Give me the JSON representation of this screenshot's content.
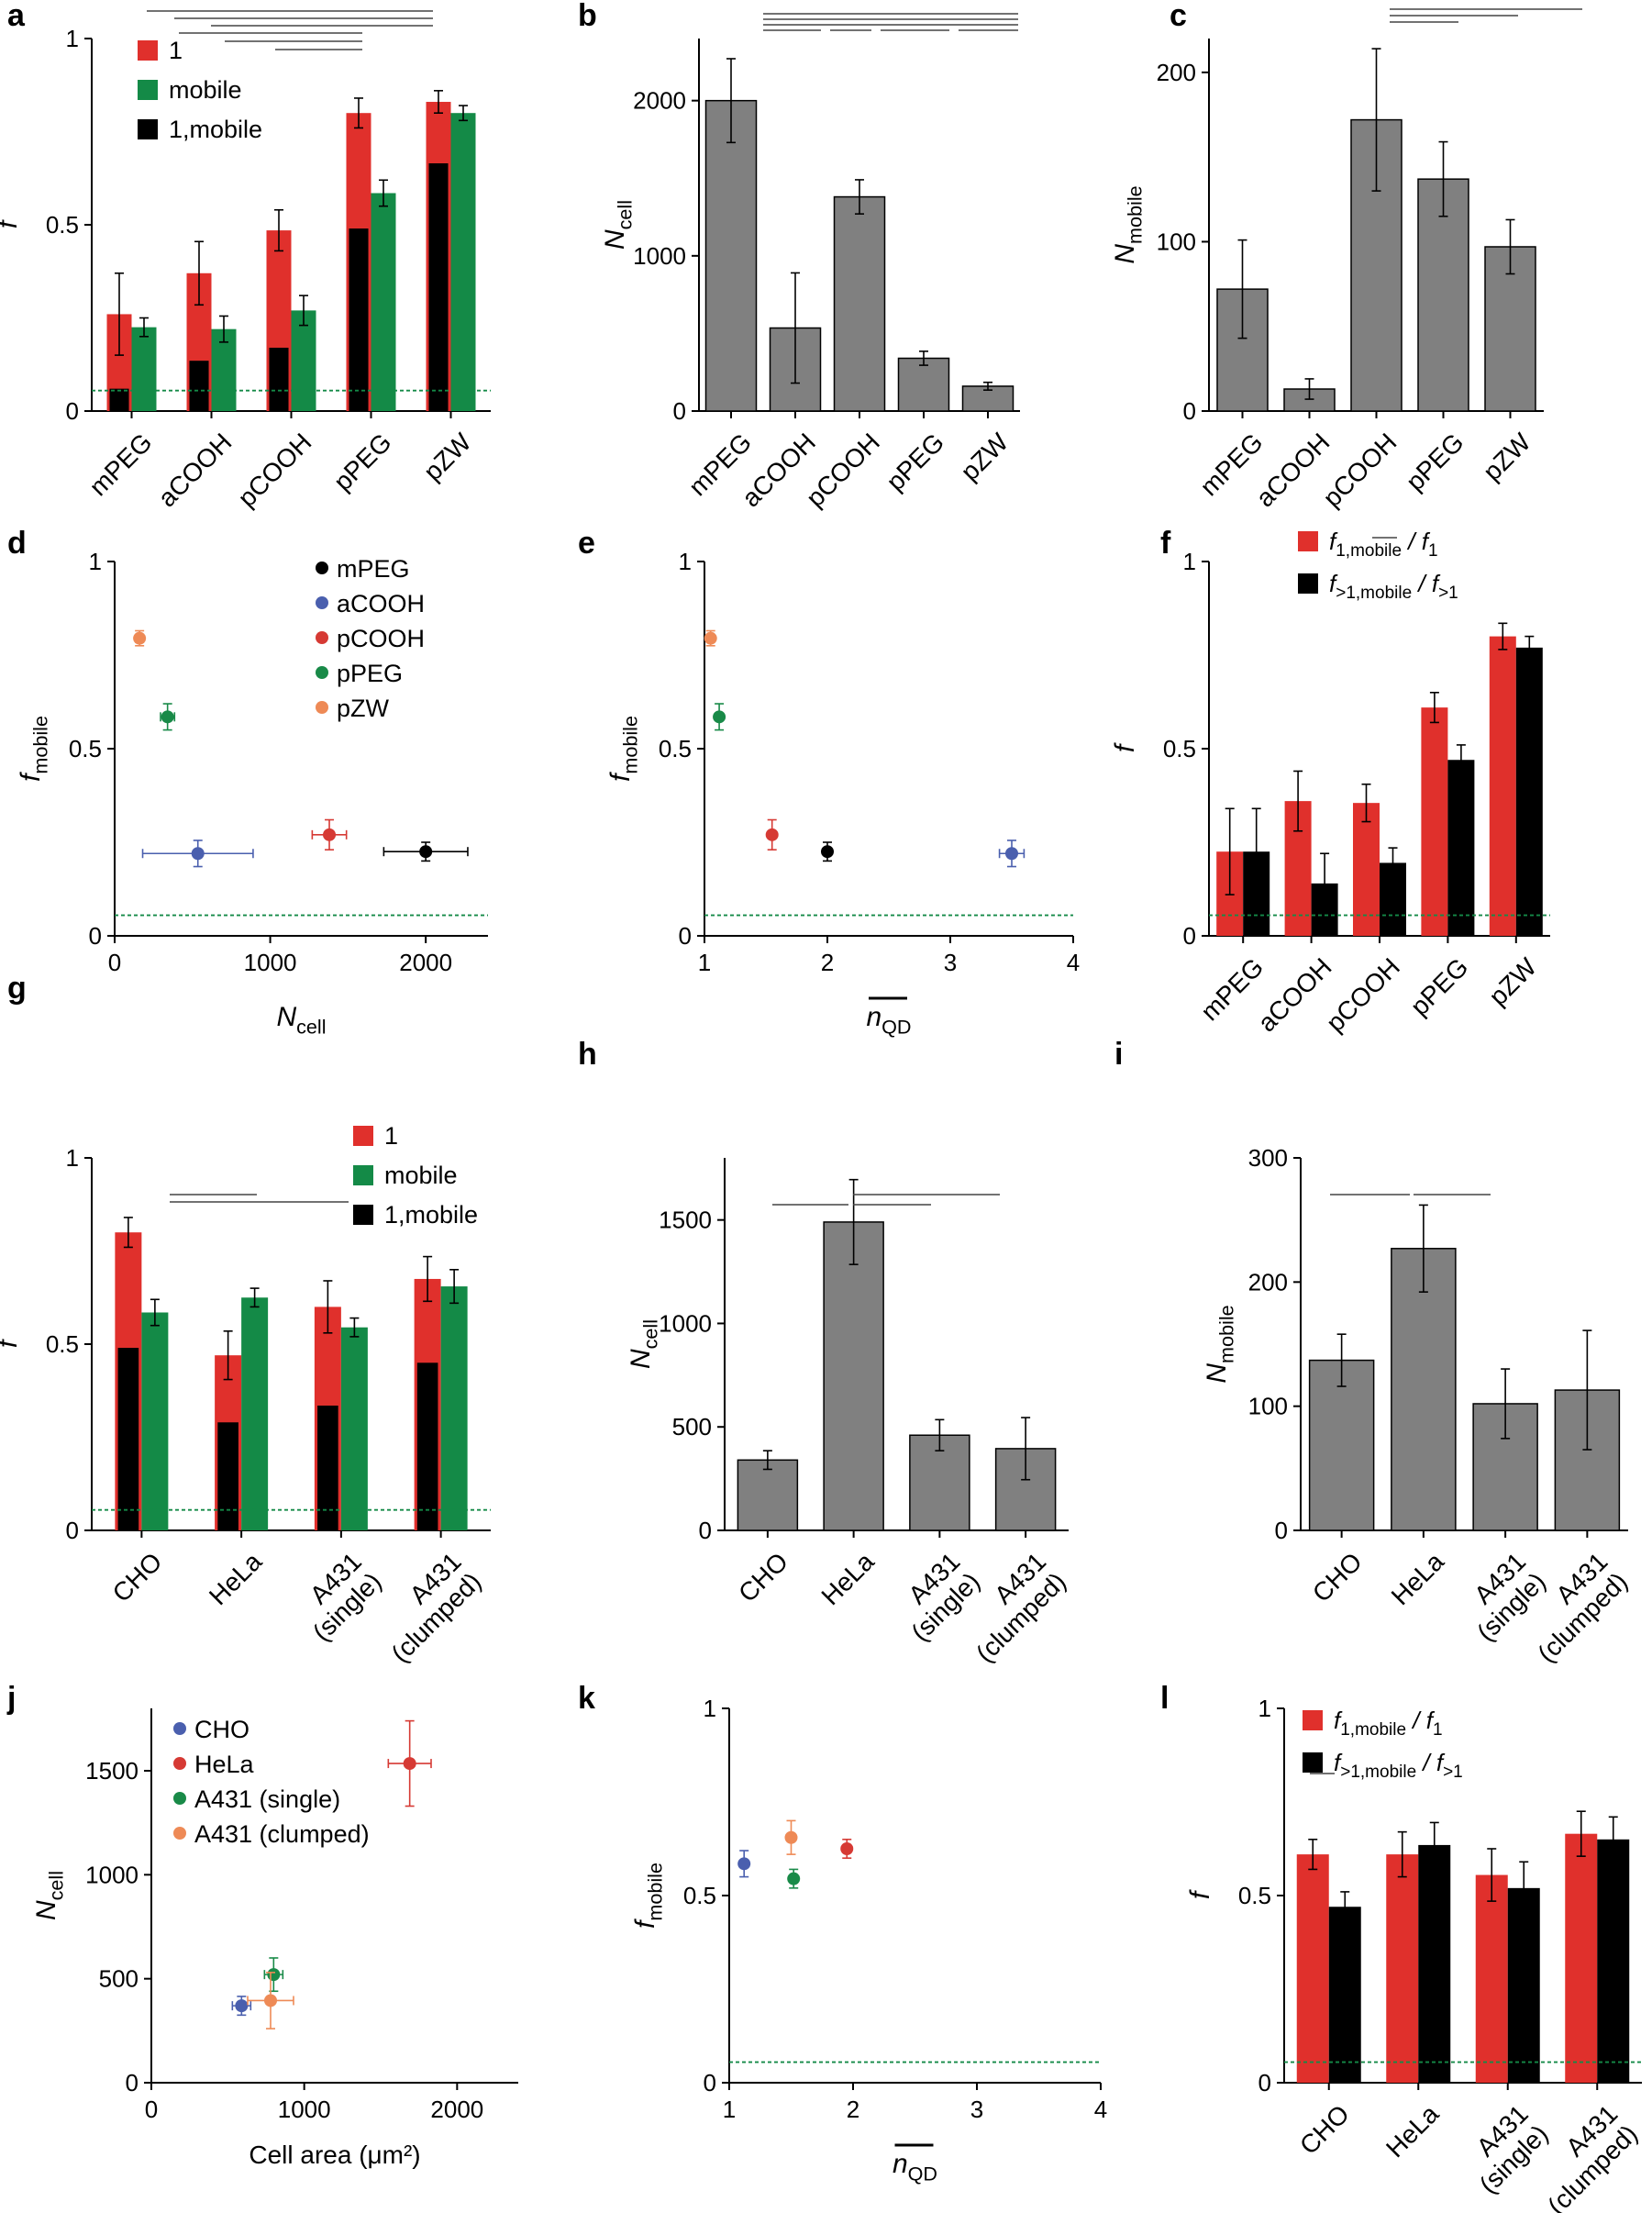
{
  "colors": {
    "red": "#e0302c",
    "green": "#148a47",
    "black": "#000000",
    "gray": "#808080",
    "dotted": "#148a47",
    "blue": "#4a5fae",
    "dred": "#d63a34",
    "dgreen": "#198a48",
    "orange": "#ee8a56"
  },
  "chart_data": [
    {
      "id": "a",
      "letter": "a",
      "type": "bar",
      "ylabel": "f",
      "ylim": [
        0,
        1
      ],
      "yticks": [
        "0",
        "0.5",
        "1"
      ],
      "categories": [
        "mPEG",
        "aCOOH",
        "pCOOH",
        "pPEG",
        "pZW"
      ],
      "series": [
        {
          "name": "1",
          "color": "red",
          "values": [
            0.26,
            0.37,
            0.485,
            0.8,
            0.83
          ],
          "err": [
            0.11,
            0.085,
            0.055,
            0.04,
            0.03
          ]
        },
        {
          "name": "mobile",
          "color": "green",
          "values": [
            0.225,
            0.22,
            0.27,
            0.585,
            0.8
          ],
          "err": [
            0.025,
            0.035,
            0.04,
            0.035,
            0.02
          ]
        },
        {
          "name": "1,mobile",
          "color": "black",
          "values": [
            0.06,
            0.135,
            0.17,
            0.49,
            0.665
          ],
          "err": [
            0,
            0,
            0,
            0,
            0
          ]
        }
      ],
      "baseline": 0.055,
      "legend": [
        "1",
        "mobile",
        "1,mobile"
      ]
    },
    {
      "id": "b",
      "letter": "b",
      "type": "bar",
      "ylabel": "N",
      "ylabelSub": "cell",
      "ylim": [
        0,
        2400
      ],
      "yticks": [
        "0",
        "1000",
        "2000"
      ],
      "categories": [
        "mPEG",
        "aCOOH",
        "pCOOH",
        "pPEG",
        "pZW"
      ],
      "series": [
        {
          "name": "N",
          "color": "gray",
          "values": [
            2000,
            535,
            1380,
            340,
            160
          ],
          "err": [
            270,
            355,
            110,
            45,
            25
          ]
        }
      ]
    },
    {
      "id": "c",
      "letter": "c",
      "type": "bar",
      "ylabel": "N",
      "ylabelSub": "mobile",
      "ylim": [
        0,
        220
      ],
      "yticks": [
        "0",
        "100",
        "200"
      ],
      "categories": [
        "mPEG",
        "aCOOH",
        "pCOOH",
        "pPEG",
        "pZW"
      ],
      "series": [
        {
          "name": "N",
          "color": "gray",
          "values": [
            72,
            13,
            172,
            137,
            97
          ],
          "err": [
            29,
            6,
            42,
            22,
            16
          ]
        }
      ]
    },
    {
      "id": "d",
      "letter": "d",
      "type": "scatter",
      "ylabel": "f",
      "ylabelSub": "mobile",
      "xlabel": "N",
      "xlabelSub": "cell",
      "xlim": [
        0,
        2400
      ],
      "ylim": [
        0,
        1
      ],
      "xticks": [
        "0",
        "1000",
        "2000"
      ],
      "yticks": [
        "0",
        "0.5",
        "1"
      ],
      "points": [
        {
          "name": "mPEG",
          "color": "black",
          "x": 2000,
          "y": 0.225,
          "xerr": 270,
          "yerr": 0.025
        },
        {
          "name": "aCOOH",
          "color": "blue",
          "x": 535,
          "y": 0.22,
          "xerr": 355,
          "yerr": 0.035
        },
        {
          "name": "pCOOH",
          "color": "dred",
          "x": 1380,
          "y": 0.27,
          "xerr": 110,
          "yerr": 0.04
        },
        {
          "name": "pPEG",
          "color": "dgreen",
          "x": 340,
          "y": 0.585,
          "xerr": 45,
          "yerr": 0.035
        },
        {
          "name": "pZW",
          "color": "orange",
          "x": 160,
          "y": 0.795,
          "xerr": 25,
          "yerr": 0.02
        }
      ],
      "baseline": 0.055,
      "legend": [
        "mPEG",
        "aCOOH",
        "pCOOH",
        "pPEG",
        "pZW"
      ]
    },
    {
      "id": "e",
      "letter": "e",
      "type": "scatter",
      "ylabel": "f",
      "ylabelSub": "mobile",
      "xlabel": "n",
      "xlabelSub": "QD",
      "xlim": [
        1,
        4
      ],
      "ylim": [
        0,
        1
      ],
      "xticks": [
        "1",
        "2",
        "3",
        "4"
      ],
      "yticks": [
        "0",
        "0.5",
        "1"
      ],
      "points": [
        {
          "name": "pZW",
          "color": "orange",
          "x": 1.05,
          "y": 0.795,
          "xerr": 0,
          "yerr": 0.02
        },
        {
          "name": "pPEG",
          "color": "dgreen",
          "x": 1.12,
          "y": 0.585,
          "xerr": 0,
          "yerr": 0.035
        },
        {
          "name": "pCOOH",
          "color": "dred",
          "x": 1.55,
          "y": 0.27,
          "xerr": 0,
          "yerr": 0.04
        },
        {
          "name": "mPEG",
          "color": "black",
          "x": 2.0,
          "y": 0.225,
          "xerr": 0,
          "yerr": 0.025
        },
        {
          "name": "aCOOH",
          "color": "blue",
          "x": 3.5,
          "y": 0.22,
          "xerr": 0.1,
          "yerr": 0.035
        }
      ],
      "baseline": 0.055
    },
    {
      "id": "f",
      "letter": "f",
      "type": "bar",
      "ylabel": "f",
      "ylim": [
        0,
        1
      ],
      "yticks": [
        "0",
        "0.5",
        "1"
      ],
      "categories": [
        "mPEG",
        "aCOOH",
        "pCOOH",
        "pPEG",
        "pZW"
      ],
      "series": [
        {
          "name": "f1,mobile / f1",
          "color": "red",
          "values": [
            0.225,
            0.36,
            0.355,
            0.61,
            0.8
          ],
          "err": [
            0.115,
            0.08,
            0.05,
            0.04,
            0.035
          ]
        },
        {
          "name": "f>1,mobile / f>1",
          "color": "black",
          "values": [
            0.225,
            0.14,
            0.195,
            0.47,
            0.77
          ],
          "err": [
            0.115,
            0.08,
            0.04,
            0.04,
            0.03
          ]
        }
      ],
      "baseline": 0.055,
      "legend": [
        {
          "main": "f",
          "sub": "1,mobile",
          "mid": " / f",
          "sub2": "1"
        },
        {
          "main": "f",
          "sub": ">1,mobile",
          "mid": " / f",
          "sub2": ">1"
        }
      ]
    },
    {
      "id": "g",
      "letter": "g",
      "type": "bar",
      "ylabel": "f",
      "ylim": [
        0,
        1
      ],
      "yticks": [
        "0",
        "0.5",
        "1"
      ],
      "categories": [
        "CHO",
        "HeLa",
        "A431\n(single)",
        "A431\n(clumped)"
      ],
      "series": [
        {
          "name": "1",
          "color": "red",
          "values": [
            0.8,
            0.47,
            0.6,
            0.675
          ],
          "err": [
            0.04,
            0.065,
            0.07,
            0.06
          ]
        },
        {
          "name": "mobile",
          "color": "green",
          "values": [
            0.585,
            0.625,
            0.545,
            0.655
          ],
          "err": [
            0.035,
            0.025,
            0.025,
            0.045
          ]
        },
        {
          "name": "1,mobile",
          "color": "black",
          "values": [
            0.49,
            0.29,
            0.335,
            0.45
          ],
          "err": [
            0,
            0,
            0,
            0
          ]
        }
      ],
      "baseline": 0.055,
      "legend": [
        "1",
        "mobile",
        "1,mobile"
      ]
    },
    {
      "id": "h",
      "letter": "h",
      "type": "bar",
      "ylabel": "N",
      "ylabelSub": "cell",
      "ylim": [
        0,
        1800
      ],
      "yticks": [
        "0",
        "500",
        "1000",
        "1500"
      ],
      "categories": [
        "CHO",
        "HeLa",
        "A431\n(single)",
        "A431\n(clumped)"
      ],
      "series": [
        {
          "name": "N",
          "color": "gray",
          "values": [
            340,
            1490,
            460,
            395
          ],
          "err": [
            45,
            205,
            75,
            150
          ]
        }
      ]
    },
    {
      "id": "i",
      "letter": "i",
      "type": "bar",
      "ylabel": "N",
      "ylabelSub": "mobile",
      "ylim": [
        0,
        300
      ],
      "yticks": [
        "0",
        "100",
        "200",
        "300"
      ],
      "categories": [
        "CHO",
        "HeLa",
        "A431\n(single)",
        "A431\n(clumped)"
      ],
      "series": [
        {
          "name": "N",
          "color": "gray",
          "values": [
            137,
            227,
            102,
            113
          ],
          "err": [
            21,
            35,
            28,
            48
          ]
        }
      ]
    },
    {
      "id": "j",
      "letter": "j",
      "type": "scatter",
      "ylabel": "N",
      "ylabelSub": "cell",
      "xlabel": "Cell area (μm²)",
      "xlim": [
        0,
        2400
      ],
      "ylim": [
        0,
        1800
      ],
      "xticks": [
        "0",
        "1000",
        "2000"
      ],
      "yticks": [
        "0",
        "500",
        "1000",
        "1500"
      ],
      "points": [
        {
          "name": "CHO",
          "color": "blue",
          "x": 590,
          "y": 370,
          "xerr": 60,
          "yerr": 45
        },
        {
          "name": "HeLa",
          "color": "dred",
          "x": 1690,
          "y": 1535,
          "xerr": 140,
          "yerr": 205
        },
        {
          "name": "A431 (single)",
          "color": "dgreen",
          "x": 800,
          "y": 520,
          "xerr": 60,
          "yerr": 80
        },
        {
          "name": "A431 (clumped)",
          "color": "orange",
          "x": 780,
          "y": 395,
          "xerr": 150,
          "yerr": 135
        }
      ],
      "legend": [
        "CHO",
        "HeLa",
        "A431 (single)",
        "A431 (clumped)"
      ]
    },
    {
      "id": "k",
      "letter": "k",
      "type": "scatter",
      "ylabel": "f",
      "ylabelSub": "mobile",
      "xlabel": "n",
      "xlabelSub": "QD",
      "xlim": [
        1,
        4
      ],
      "ylim": [
        0,
        1
      ],
      "xticks": [
        "1",
        "2",
        "3",
        "4"
      ],
      "yticks": [
        "0",
        "0.5",
        "1"
      ],
      "points": [
        {
          "name": "CHO",
          "color": "blue",
          "x": 1.12,
          "y": 0.585,
          "xerr": 0,
          "yerr": 0.035
        },
        {
          "name": "A431 (clumped)",
          "color": "orange",
          "x": 1.5,
          "y": 0.655,
          "xerr": 0,
          "yerr": 0.045
        },
        {
          "name": "A431 (single)",
          "color": "dgreen",
          "x": 1.52,
          "y": 0.545,
          "xerr": 0,
          "yerr": 0.025
        },
        {
          "name": "HeLa",
          "color": "dred",
          "x": 1.95,
          "y": 0.625,
          "xerr": 0,
          "yerr": 0.025
        }
      ],
      "baseline": 0.055
    },
    {
      "id": "l",
      "letter": "l",
      "type": "bar",
      "ylabel": "f",
      "ylim": [
        0,
        1
      ],
      "yticks": [
        "0",
        "0.5",
        "1"
      ],
      "categories": [
        "CHO",
        "HeLa",
        "A431\n(single)",
        "A431\n(clumped)"
      ],
      "series": [
        {
          "name": "f1,mobile / f1",
          "color": "red",
          "values": [
            0.61,
            0.61,
            0.555,
            0.665
          ],
          "err": [
            0.04,
            0.06,
            0.07,
            0.06
          ]
        },
        {
          "name": "f>1,mobile / f>1",
          "color": "black",
          "values": [
            0.47,
            0.635,
            0.52,
            0.65
          ],
          "err": [
            0.04,
            0.06,
            0.07,
            0.06
          ]
        }
      ],
      "baseline": 0.055,
      "legend": [
        {
          "main": "f",
          "sub": "1,mobile",
          "mid": " / f",
          "sub2": "1"
        },
        {
          "main": "f",
          "sub": ">1,mobile",
          "mid": " / f",
          "sub2": ">1"
        }
      ]
    }
  ]
}
